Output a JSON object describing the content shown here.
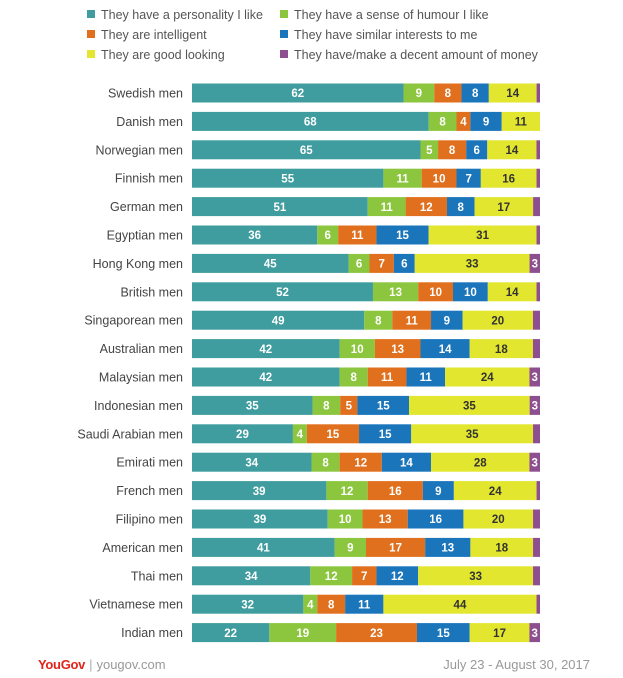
{
  "chart_data": {
    "type": "stacked-bar-horizontal",
    "series": [
      {
        "name": "They have a personality I like",
        "color": "#3f9c9f",
        "values": [
          62,
          68,
          65,
          55,
          51,
          36,
          45,
          52,
          49,
          42,
          42,
          35,
          29,
          34,
          39,
          39,
          41,
          34,
          32,
          22
        ]
      },
      {
        "name": "They have a sense of humour I like",
        "color": "#8cc63f",
        "values": [
          9,
          8,
          5,
          11,
          11,
          6,
          6,
          13,
          8,
          10,
          8,
          8,
          4,
          8,
          12,
          10,
          9,
          12,
          4,
          19
        ]
      },
      {
        "name": "They are intelligent",
        "color": "#e1701e",
        "values": [
          8,
          4,
          8,
          10,
          12,
          11,
          7,
          10,
          11,
          13,
          11,
          5,
          15,
          12,
          16,
          13,
          17,
          7,
          8,
          23
        ]
      },
      {
        "name": "They have similar interests to me",
        "color": "#1a75bb",
        "values": [
          8,
          9,
          6,
          7,
          8,
          15,
          6,
          10,
          9,
          14,
          11,
          15,
          15,
          14,
          9,
          16,
          13,
          12,
          11,
          15
        ]
      },
      {
        "name": "They are good looking",
        "color": "#e2e62e",
        "values": [
          14,
          11,
          14,
          16,
          17,
          31,
          33,
          14,
          20,
          18,
          24,
          35,
          35,
          28,
          24,
          20,
          18,
          33,
          44,
          17
        ]
      },
      {
        "name": "They have/make a decent amount of money",
        "color": "#8e4f91",
        "values": [
          1,
          0,
          1,
          1,
          2,
          1,
          3,
          1,
          2,
          2,
          3,
          3,
          2,
          3,
          1,
          2,
          2,
          2,
          1,
          3
        ]
      }
    ],
    "categories": [
      "Swedish men",
      "Danish men",
      "Norwegian men",
      "Finnish men",
      "German men",
      "Egyptian men",
      "Hong Kong men",
      "British men",
      "Singaporean men",
      "Australian men",
      "Malaysian men",
      "Indonesian men",
      "Saudi Arabian men",
      "Emirati men",
      "French men",
      "Filipino men",
      "American men",
      "Thai men",
      "Vietnamese men",
      "Indian men"
    ],
    "label_min_value": 3,
    "xlim": [
      0,
      100
    ],
    "legend_position": "top",
    "source": "YouGov",
    "site": "yougov.com",
    "date_range": "July 23 - August 30, 2017"
  }
}
